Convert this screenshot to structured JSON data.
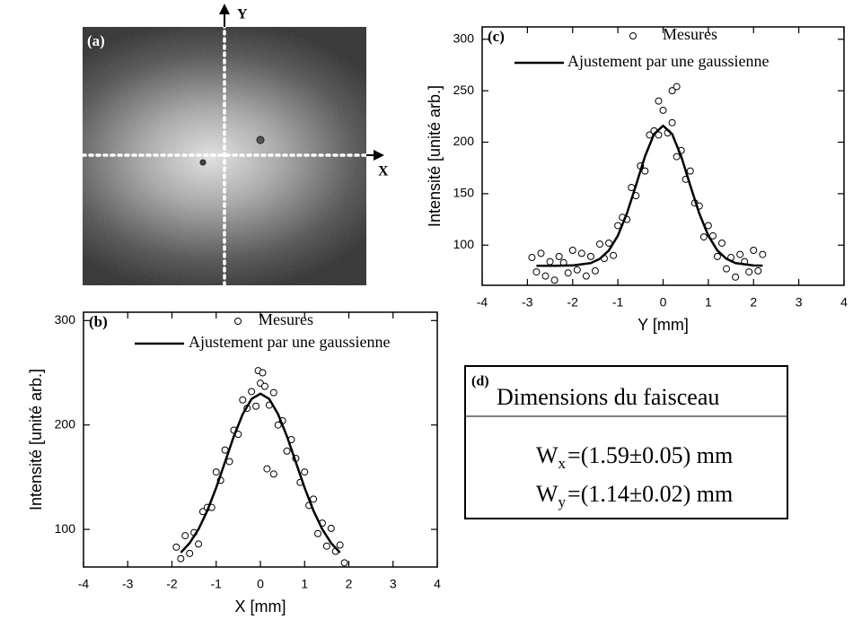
{
  "image_panel": {
    "label": "(a)",
    "x_axis_label": "X",
    "y_axis_label": "Y"
  },
  "chart_data": [
    {
      "type": "scatter",
      "panel_label": "(b)",
      "x_label": "X [mm]",
      "y_label": "Intensité [unité arb.]",
      "xlim": [
        -4,
        4
      ],
      "xticks": [
        -4,
        -3,
        -2,
        -1,
        0,
        1,
        2,
        3,
        4
      ],
      "ylim": [
        64,
        308
      ],
      "yticks": [
        100,
        200,
        300
      ],
      "series": [
        {
          "name": "Mesures",
          "style": "markers",
          "color": "#000000",
          "x": [
            -1.9,
            -1.8,
            -1.7,
            -1.6,
            -1.5,
            -1.4,
            -1.3,
            -1.2,
            -1.1,
            -1.0,
            -0.9,
            -0.8,
            -0.7,
            -0.6,
            -0.5,
            -0.4,
            -0.3,
            -0.2,
            -0.1,
            0,
            0.1,
            0.2,
            0.3,
            0.4,
            0.5,
            0.6,
            0.7,
            0.8,
            0.9,
            1.0,
            1.1,
            1.2,
            1.3,
            1.4,
            1.5,
            1.6,
            1.7,
            1.8,
            1.9,
            0.15,
            0.3,
            -0.05,
            0.05
          ],
          "values": [
            83,
            72,
            94,
            77,
            97,
            86,
            117,
            121,
            121,
            155,
            147,
            176,
            165,
            195,
            191,
            224,
            216,
            232,
            218,
            240,
            237,
            219,
            231,
            200,
            204,
            175,
            186,
            168,
            145,
            155,
            123,
            129,
            96,
            106,
            84,
            101,
            79,
            85,
            68,
            158,
            153,
            252,
            250
          ]
        },
        {
          "name": "Ajustement par une gaussienne",
          "style": "line",
          "color": "#000000",
          "x": [
            -1.8,
            -1.6,
            -1.4,
            -1.2,
            -1.0,
            -0.8,
            -0.6,
            -0.4,
            -0.2,
            0,
            0.2,
            0.4,
            0.6,
            0.8,
            1.0,
            1.2,
            1.4,
            1.6,
            1.8
          ],
          "values": [
            77.8,
            86.9,
            100.1,
            117.9,
            139.9,
            164.5,
            189.2,
            210.4,
            224.9,
            230,
            224.9,
            210.4,
            189.2,
            164.5,
            139.9,
            117.9,
            100.1,
            86.9,
            77.8
          ]
        }
      ]
    },
    {
      "type": "scatter",
      "panel_label": "(c)",
      "x_label": "Y [mm]",
      "y_label": "Intensité [unité arb.]",
      "xlim": [
        -4,
        4
      ],
      "xticks": [
        -4,
        -3,
        -2,
        -1,
        0,
        1,
        2,
        3,
        4
      ],
      "ylim": [
        61,
        312
      ],
      "yticks": [
        100,
        150,
        200,
        250,
        300
      ],
      "series": [
        {
          "name": "Mesures",
          "style": "markers",
          "color": "#000000",
          "x": [
            -2.9,
            -2.8,
            -2.7,
            -2.6,
            -2.5,
            -2.4,
            -2.3,
            -2.2,
            -2.1,
            -2.0,
            -1.9,
            -1.8,
            -1.7,
            -1.6,
            -1.5,
            -1.4,
            -1.3,
            -1.2,
            -1.1,
            -1.0,
            -0.9,
            -0.8,
            -0.7,
            -0.6,
            -0.5,
            -0.4,
            -0.3,
            -0.2,
            -0.1,
            0,
            0.1,
            0.2,
            0.3,
            0.4,
            0.5,
            0.6,
            0.7,
            0.8,
            0.9,
            1.0,
            1.1,
            1.2,
            1.3,
            1.4,
            1.5,
            1.6,
            1.7,
            1.8,
            1.9,
            2.0,
            2.1,
            2.2,
            0.2,
            0.3,
            -0.1
          ],
          "values": [
            88,
            74,
            92,
            70,
            84,
            66,
            89,
            83,
            73,
            95,
            76,
            92,
            70,
            89,
            75,
            101,
            87,
            102,
            90,
            119,
            127,
            125,
            156,
            148,
            177,
            172,
            207,
            211,
            207,
            231,
            209,
            219,
            186,
            192,
            164,
            172,
            141,
            138,
            108,
            119,
            109,
            89,
            102,
            77,
            88,
            69,
            91,
            84,
            74,
            95,
            75,
            91,
            250,
            254,
            240
          ]
        },
        {
          "name": "Ajustement par une gaussienne",
          "style": "line",
          "color": "#000000",
          "x": [
            -2.8,
            -2.4,
            -2.0,
            -1.6,
            -1.4,
            -1.2,
            -1.0,
            -0.8,
            -0.6,
            -0.4,
            -0.2,
            0,
            0.2,
            0.4,
            0.6,
            0.8,
            1.0,
            1.2,
            1.4,
            1.6,
            2.0,
            2.2
          ],
          "values": [
            80,
            80,
            80.3,
            82.6,
            86.7,
            94.8,
            109.2,
            130.8,
            158.1,
            186.3,
            207.9,
            216,
            207.9,
            186.3,
            158.1,
            130.8,
            109.2,
            94.8,
            86.7,
            82.6,
            80.3,
            80.1
          ]
        }
      ]
    }
  ],
  "dimensions_box": {
    "label": "(d)",
    "title": "Dimensions du faisceau",
    "rows": [
      {
        "symbol": "W",
        "subscript": "x",
        "text": "=(1.59±0.05) mm"
      },
      {
        "symbol": "W",
        "subscript": "y",
        "text": "=(1.14±0.02) mm"
      }
    ]
  }
}
